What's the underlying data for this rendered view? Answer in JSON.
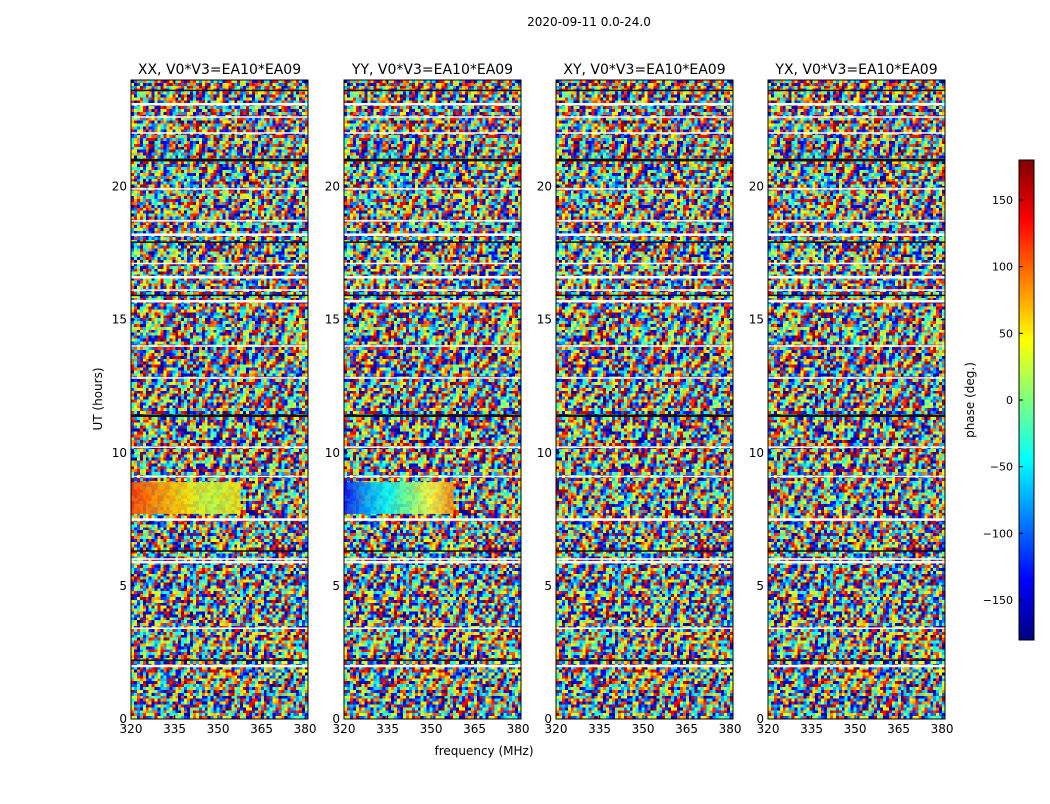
{
  "figure": {
    "suptitle": "2020-09-11 0.0-24.0",
    "ylabel": "UT (hours)",
    "xlabel": "frequency (MHz)"
  },
  "chart_data": {
    "type": "heatmap",
    "title": "2020-09-11 0.0-24.0",
    "xlabel": "frequency (MHz)",
    "ylabel": "UT (hours)",
    "xlim": [
      320,
      381
    ],
    "ylim": [
      0,
      24
    ],
    "xticks": [
      320,
      335,
      350,
      365,
      380
    ],
    "yticks": [
      0,
      5,
      10,
      15,
      20
    ],
    "panels": [
      {
        "title": "XX, V0*V3=EA10*EA09",
        "coherent_band_hours": [
          7.7,
          8.9
        ],
        "band_end_mhz": 381
      },
      {
        "title": "YY, V0*V3=EA10*EA09",
        "coherent_band_hours": [
          7.7,
          8.9
        ],
        "band_end_mhz": 381
      },
      {
        "title": "XY, V0*V3=EA10*EA09",
        "coherent_band_hours": [],
        "band_end_mhz": 381
      },
      {
        "title": "YX, V0*V3=EA10*EA09",
        "coherent_band_hours": [],
        "band_end_mhz": 381
      }
    ],
    "flagged_gaps_hours": [
      2.0,
      2.2,
      3.4,
      5.9,
      6.0,
      6.3,
      7.5,
      9.1,
      10.2,
      11.4,
      12.8,
      14.0,
      15.7,
      15.9,
      16.1,
      16.6,
      17.1,
      17.9,
      18.2,
      18.7,
      19.9,
      21.0,
      22.0,
      22.6,
      23.1,
      23.6
    ],
    "colorbar": {
      "label": "phase (deg.)",
      "min": -180,
      "max": 180,
      "ticks": [
        150,
        100,
        50,
        0,
        -50,
        -100,
        -150
      ],
      "tick_labels": [
        "150",
        "100",
        "50",
        "0",
        "−50",
        "−100",
        "−150"
      ],
      "colormap": "jet",
      "stops": [
        "#00007f",
        "#0000ff",
        "#007fff",
        "#00ffff",
        "#7fff7f",
        "#ffff00",
        "#ff7f00",
        "#ff0000",
        "#7f0000"
      ]
    }
  }
}
